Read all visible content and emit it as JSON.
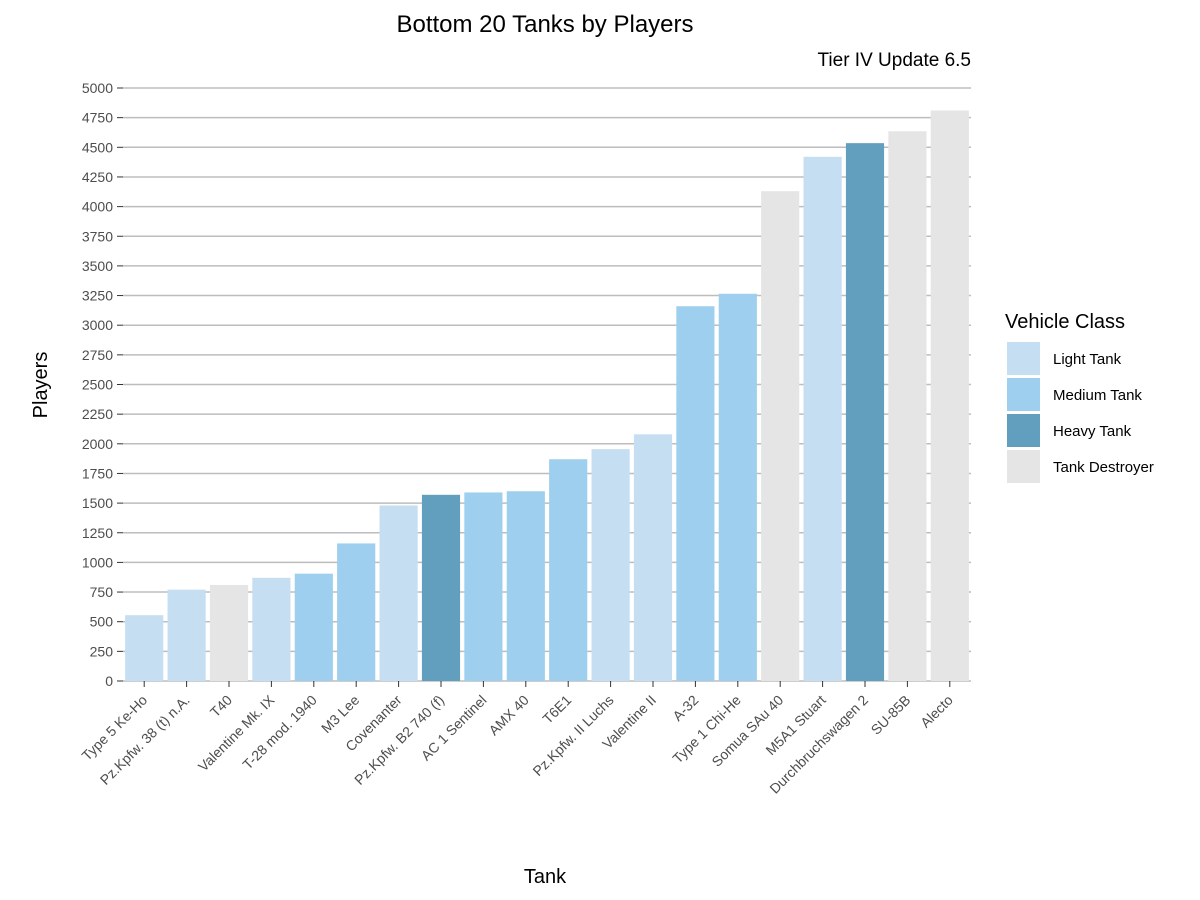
{
  "chart_data": {
    "type": "bar",
    "title": "Bottom 20 Tanks by Players",
    "subtitle": "Tier IV Update 6.5",
    "xlabel": "Tank",
    "ylabel": "Players",
    "ylim": [
      0,
      5000
    ],
    "ytick_step": 250,
    "grid": "horizontal",
    "legend": {
      "title": "Vehicle Class",
      "placement": "right",
      "entries": [
        {
          "label": "Light Tank",
          "color": "#c6def2"
        },
        {
          "label": "Medium Tank",
          "color": "#9ecfef"
        },
        {
          "label": "Heavy Tank",
          "color": "#629ebd"
        },
        {
          "label": "Tank Destroyer",
          "color": "#e5e5e5"
        }
      ]
    },
    "categories": [
      "Type 5 Ke-Ho",
      "Pz.Kpfw. 38 (t) n.A.",
      "T40",
      "Valentine Mk. IX",
      "T-28 mod. 1940",
      "M3 Lee",
      "Covenanter",
      "Pz.Kpfw. B2 740 (f)",
      "AC 1 Sentinel",
      "AMX 40",
      "T6E1",
      "Pz.Kpfw. II Luchs",
      "Valentine II",
      "A-32",
      "Type 1 Chi-He",
      "Somua SAu 40",
      "M5A1 Stuart",
      "Durchbruchswagen 2",
      "SU-85B",
      "Alecto"
    ],
    "values": [
      555,
      770,
      810,
      870,
      905,
      1160,
      1480,
      1570,
      1590,
      1600,
      1870,
      1955,
      2080,
      3160,
      3265,
      4130,
      4420,
      4535,
      4635,
      4810
    ],
    "classes": [
      "Light Tank",
      "Light Tank",
      "Tank Destroyer",
      "Light Tank",
      "Medium Tank",
      "Medium Tank",
      "Light Tank",
      "Heavy Tank",
      "Medium Tank",
      "Medium Tank",
      "Medium Tank",
      "Light Tank",
      "Light Tank",
      "Medium Tank",
      "Medium Tank",
      "Tank Destroyer",
      "Light Tank",
      "Heavy Tank",
      "Tank Destroyer",
      "Tank Destroyer"
    ]
  }
}
